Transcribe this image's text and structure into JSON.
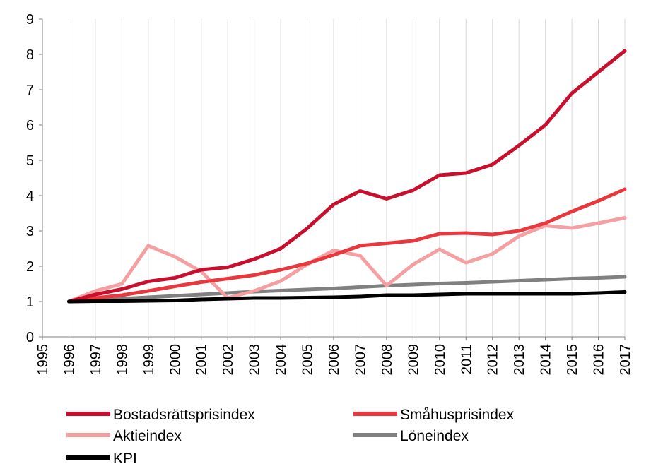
{
  "chart_data": {
    "type": "line",
    "title": "",
    "xlabel": "",
    "ylabel": "",
    "ylim": [
      0,
      9
    ],
    "yticks": [
      0,
      1,
      2,
      3,
      4,
      5,
      6,
      7,
      8,
      9
    ],
    "xlim": [
      1995,
      2017
    ],
    "x": [
      1995,
      1996,
      1997,
      1998,
      1999,
      2000,
      2001,
      2002,
      2003,
      2004,
      2005,
      2006,
      2007,
      2008,
      2009,
      2010,
      2011,
      2012,
      2013,
      2014,
      2015,
      2016,
      2017
    ],
    "grid": "vertical",
    "legend_position": "bottom",
    "series": [
      {
        "name": "Bostadsrättsprisindex",
        "color": "#c8102e",
        "x": [
          1996,
          1997,
          1998,
          1999,
          2000,
          2001,
          2002,
          2003,
          2004,
          2005,
          2006,
          2007,
          2008,
          2009,
          2010,
          2011,
          2012,
          2013,
          2014,
          2015,
          2016,
          2017
        ],
        "values": [
          1.0,
          1.2,
          1.35,
          1.57,
          1.67,
          1.9,
          1.97,
          2.2,
          2.5,
          3.07,
          3.75,
          4.13,
          3.91,
          4.15,
          4.58,
          4.64,
          4.88,
          5.42,
          6.0,
          6.9,
          7.5,
          8.1
        ]
      },
      {
        "name": "Småhusprisindex",
        "color": "#e8383d",
        "x": [
          1996,
          1997,
          1998,
          1999,
          2000,
          2001,
          2002,
          2003,
          2004,
          2005,
          2006,
          2007,
          2008,
          2009,
          2010,
          2011,
          2012,
          2013,
          2014,
          2015,
          2016,
          2017
        ],
        "values": [
          1.0,
          1.1,
          1.18,
          1.3,
          1.43,
          1.55,
          1.65,
          1.75,
          1.9,
          2.08,
          2.32,
          2.58,
          2.65,
          2.72,
          2.92,
          2.94,
          2.9,
          3.0,
          3.22,
          3.55,
          3.85,
          4.18
        ]
      },
      {
        "name": "Aktieindex",
        "color": "#f4a0a2",
        "x": [
          1996,
          1997,
          1998,
          1999,
          2000,
          2001,
          2002,
          2003,
          2004,
          2005,
          2006,
          2007,
          2008,
          2009,
          2010,
          2011,
          2012,
          2013,
          2014,
          2015,
          2016,
          2017
        ],
        "values": [
          1.0,
          1.3,
          1.5,
          2.58,
          2.27,
          1.85,
          1.1,
          1.3,
          1.58,
          2.05,
          2.45,
          2.3,
          1.45,
          2.05,
          2.48,
          2.1,
          2.35,
          2.85,
          3.15,
          3.08,
          3.22,
          3.37
        ]
      },
      {
        "name": "Löneindex",
        "color": "#808080",
        "x": [
          1996,
          1997,
          1998,
          1999,
          2000,
          2001,
          2002,
          2003,
          2004,
          2005,
          2006,
          2007,
          2008,
          2009,
          2010,
          2011,
          2012,
          2013,
          2014,
          2015,
          2016,
          2017
        ],
        "values": [
          1.0,
          1.04,
          1.08,
          1.12,
          1.16,
          1.2,
          1.24,
          1.28,
          1.31,
          1.34,
          1.37,
          1.41,
          1.45,
          1.48,
          1.51,
          1.53,
          1.56,
          1.59,
          1.62,
          1.65,
          1.67,
          1.7
        ]
      },
      {
        "name": "KPI",
        "color": "#000000",
        "x": [
          1996,
          1997,
          1998,
          1999,
          2000,
          2001,
          2002,
          2003,
          2004,
          2005,
          2006,
          2007,
          2008,
          2009,
          2010,
          2011,
          2012,
          2013,
          2014,
          2015,
          2016,
          2017
        ],
        "values": [
          1.0,
          1.01,
          1.01,
          1.02,
          1.03,
          1.06,
          1.08,
          1.1,
          1.1,
          1.11,
          1.12,
          1.14,
          1.18,
          1.18,
          1.2,
          1.22,
          1.22,
          1.22,
          1.22,
          1.22,
          1.24,
          1.27
        ]
      }
    ]
  }
}
